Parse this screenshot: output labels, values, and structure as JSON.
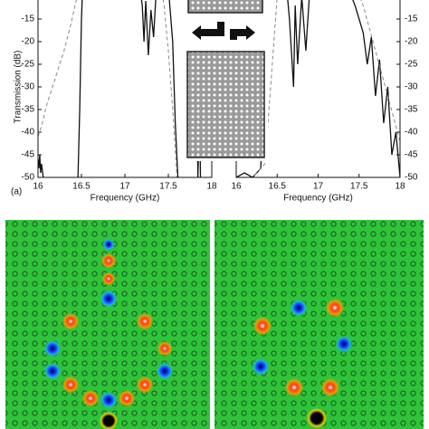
{
  "panel_label": "(a)",
  "chart_data": [
    {
      "type": "line",
      "ylabel": "Transmission (dB)",
      "xlabel": "Frequency (GHz)",
      "y_axis_side": "left",
      "xlim": [
        16,
        18
      ],
      "ylim": [
        -50,
        -10
      ],
      "xticks": [
        16,
        16.5,
        17,
        17.5,
        18
      ],
      "yticks": [
        -50,
        -45,
        -40,
        -35,
        -30,
        -25,
        -20,
        -15
      ],
      "series": [
        {
          "color": "#111111",
          "dash": false,
          "x": [
            16,
            16.01,
            16.02,
            16.03,
            16.04,
            16.06,
            16.2,
            16.46,
            16.48,
            16.5,
            16.52,
            17.15,
            17.2,
            17.22,
            17.24,
            17.27,
            17.3,
            17.33,
            17.36,
            17.42,
            17.5,
            17.55,
            17.58,
            17.61,
            17.7,
            17.83,
            17.84,
            17.86,
            17.87
          ],
          "values": [
            -46,
            -48,
            -45,
            -49,
            -47,
            -50,
            null,
            -50,
            -35,
            -15,
            -5,
            -5,
            -12,
            -20,
            -11,
            -23,
            -13,
            -19,
            -9,
            -6,
            -8,
            -20,
            -38,
            -50,
            null,
            -30,
            -50,
            -35,
            -50
          ]
        },
        {
          "color": "#888888",
          "dash": true,
          "x": [
            16,
            16.05,
            16.1,
            16.2,
            16.3,
            16.38,
            16.45,
            16.5,
            17,
            17.4,
            17.45,
            17.5,
            17.55,
            17.6
          ],
          "values": [
            -41,
            -38,
            -34,
            -28,
            -22,
            -16,
            -10,
            -5,
            null,
            -5,
            -12,
            -22,
            -35,
            -50
          ]
        }
      ]
    },
    {
      "type": "line",
      "xlabel": "Frequency (GHz)",
      "y_axis_side": "right",
      "xlim": [
        16,
        18
      ],
      "ylim": [
        -50,
        -10
      ],
      "xticks": [
        16,
        16.5,
        17,
        17.5,
        18
      ],
      "yticks": [
        -50,
        -45,
        -40,
        -35,
        -30,
        -25,
        -20,
        -15
      ],
      "series": [
        {
          "color": "#111111",
          "dash": false,
          "x": [
            16,
            16.1,
            16.2,
            16.3,
            16.32,
            16.34,
            16.36,
            16.6,
            16.65,
            16.7,
            16.72,
            16.75,
            16.8,
            16.85,
            16.9,
            17.3,
            17.45,
            17.55,
            17.6,
            17.65,
            17.7,
            17.75,
            17.8,
            17.85,
            17.9,
            17.95,
            18
          ],
          "values": [
            -50,
            -49,
            -50,
            -48,
            -35,
            -20,
            -5,
            -5,
            -15,
            -30,
            -12,
            -25,
            -10,
            -22,
            -8,
            -5,
            -12,
            -18,
            -25,
            -19,
            -32,
            -24,
            -38,
            -30,
            -45,
            -40,
            -50
          ]
        },
        {
          "color": "#888888",
          "dash": true,
          "x": [
            16,
            16.2,
            16.35,
            16.42,
            16.48,
            16.52,
            17,
            17.4,
            17.55,
            17.7,
            17.85,
            18
          ],
          "values": [
            -50,
            -50,
            -47,
            -30,
            -15,
            -5,
            null,
            -5,
            -12,
            -22,
            -32,
            -42
          ]
        }
      ]
    }
  ]
}
